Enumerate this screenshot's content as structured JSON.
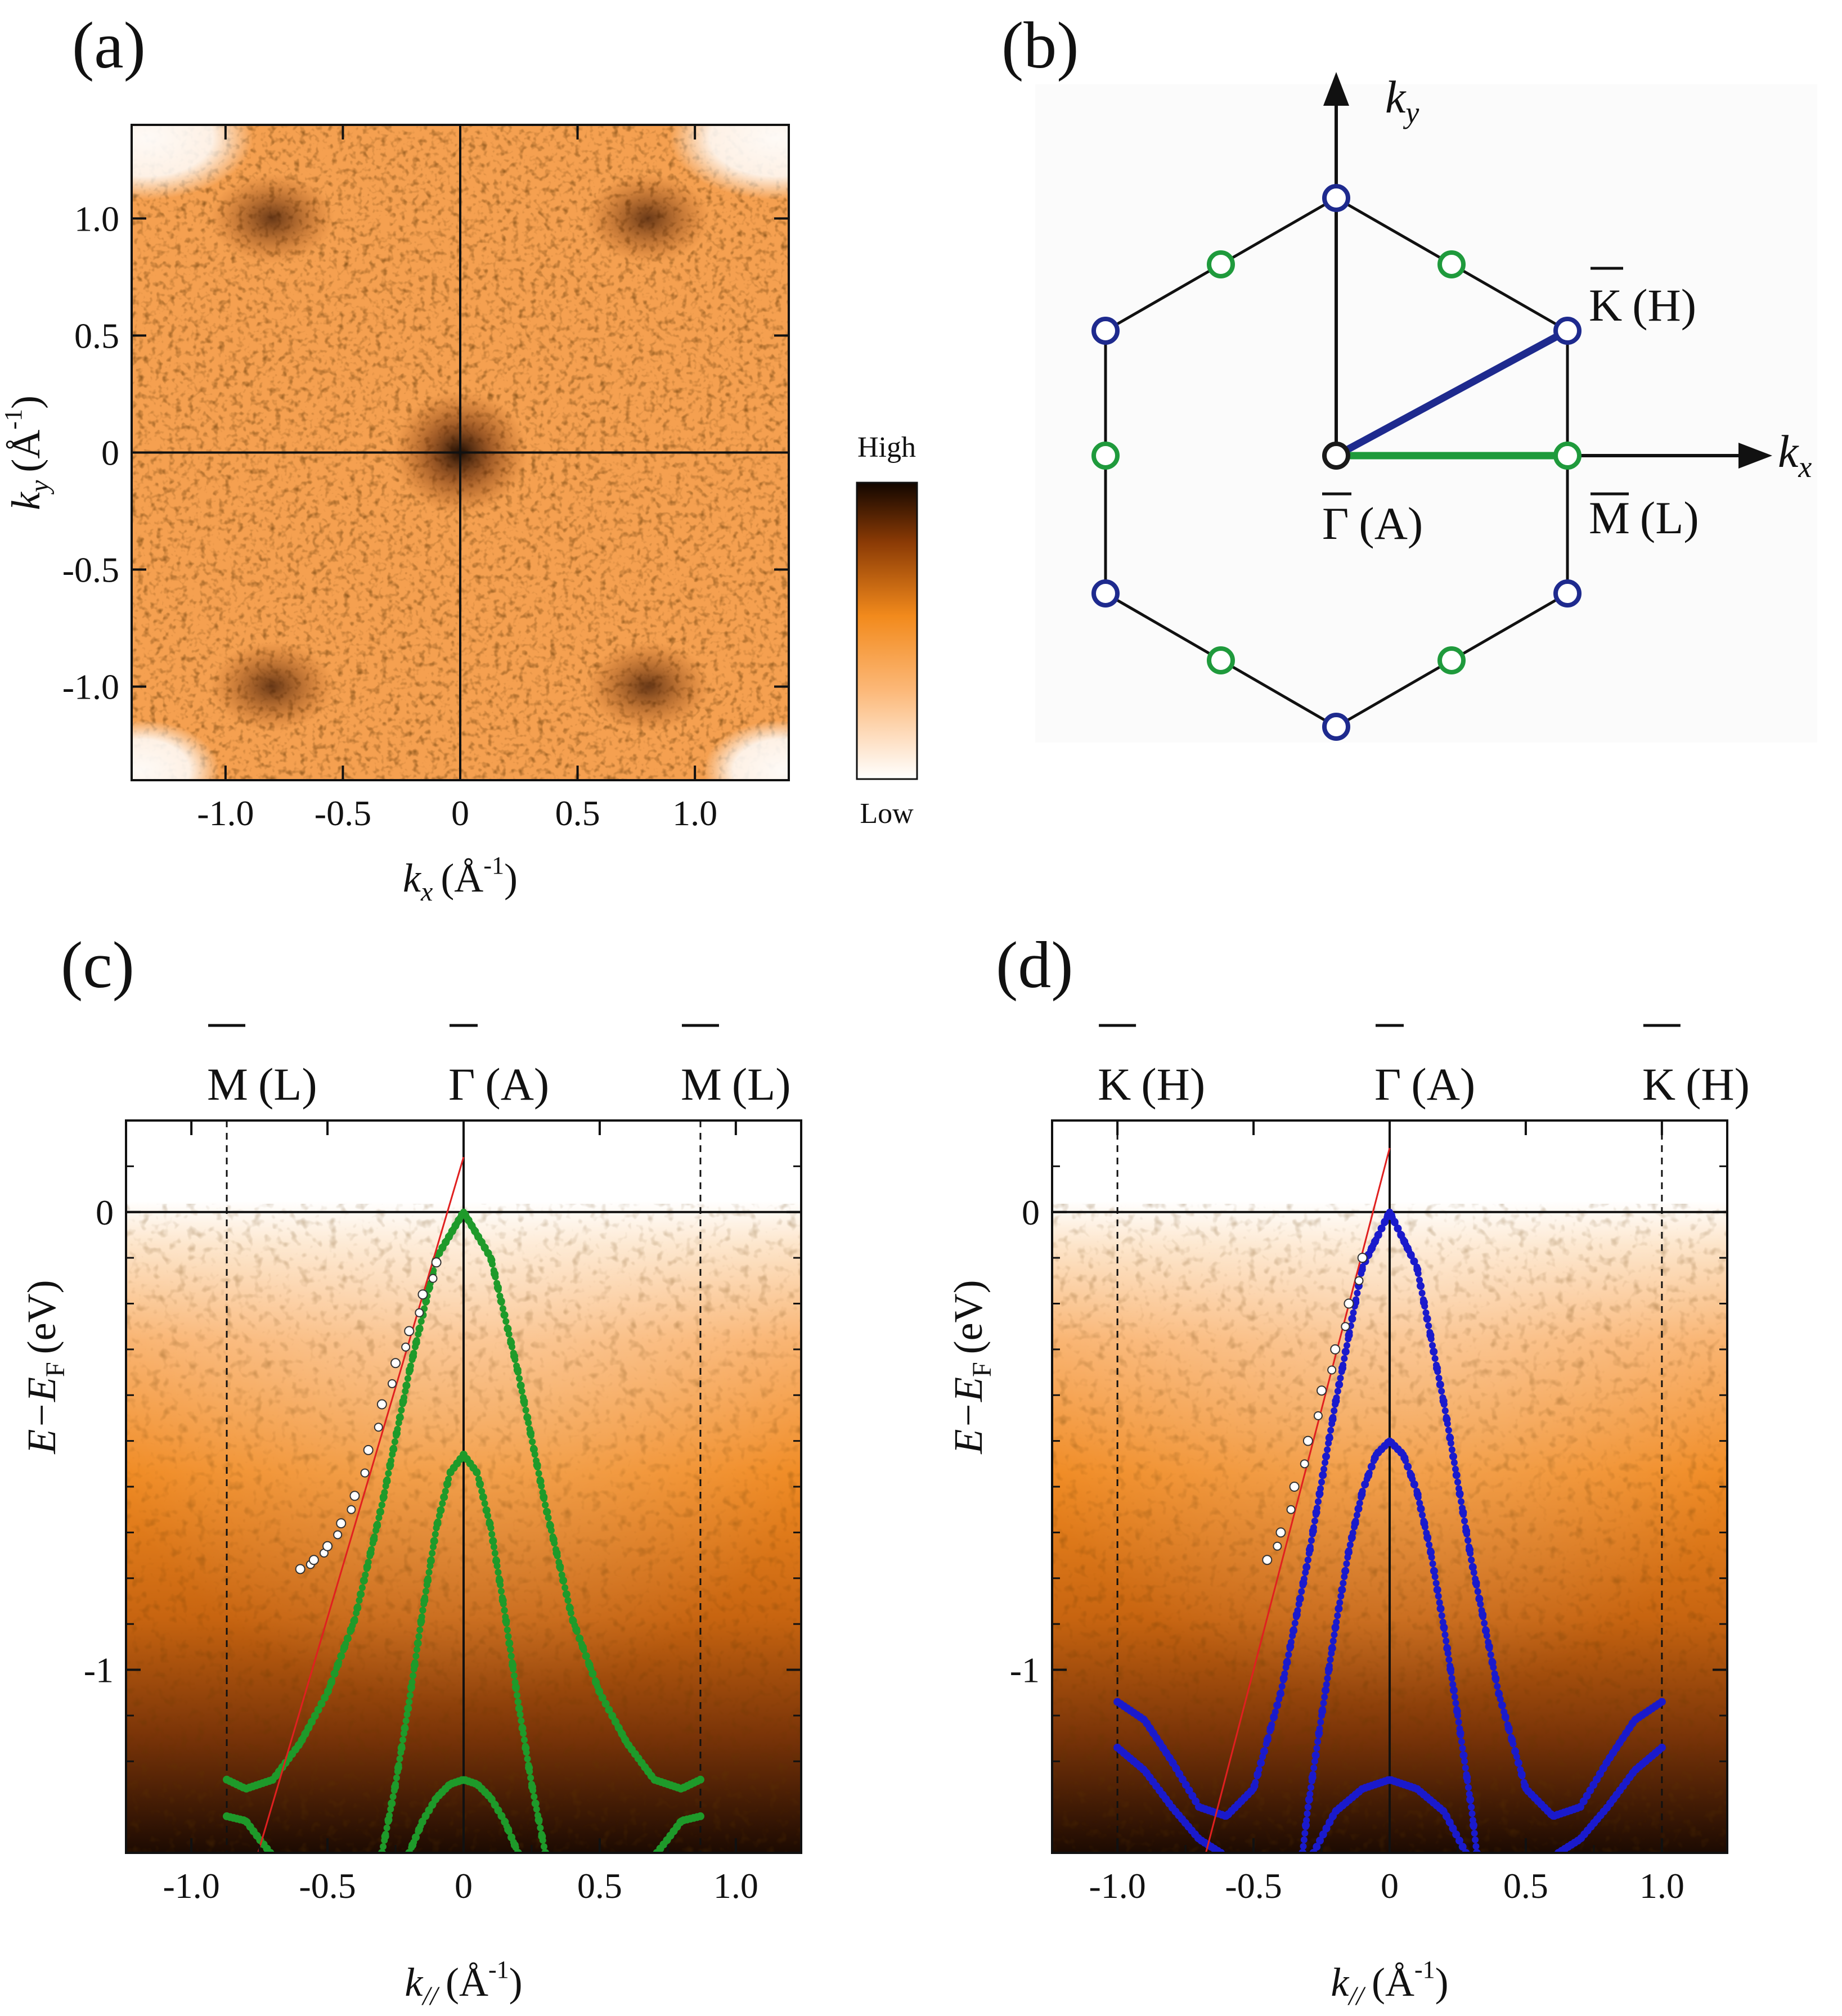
{
  "panel_labels": [
    "(a)",
    "(b)",
    "(c)",
    "(d)"
  ],
  "chart_data": [
    {
      "panel": "(a)",
      "type": "heatmap",
      "title": "",
      "xlabel": {
        "main": "k",
        "sub": "x",
        "unit": "(Å",
        "unit_exp": "-1",
        "unit_close": ")"
      },
      "ylabel": {
        "main": "k",
        "sub": "y",
        "unit": "(Å",
        "unit_exp": "-1",
        "unit_close": ")"
      },
      "xlim": [
        -1.4,
        1.4
      ],
      "ylim": [
        -1.4,
        1.4
      ],
      "xticks": [
        -1.0,
        -0.5,
        0,
        0.5,
        1.0
      ],
      "xtick_labels": [
        "-1.0",
        "-0.5",
        "0",
        "0.5",
        "1.0"
      ],
      "yticks": [
        1.0,
        0.5,
        0,
        -0.5,
        -1.0
      ],
      "ytick_labels": [
        "1.0",
        "0.5",
        "0",
        "-0.5",
        "-1.0"
      ],
      "colorbar": {
        "high_label": "High",
        "low_label": "Low",
        "colors": [
          "#ffffff",
          "#fcb878",
          "#f28a1c",
          "#8a3a05",
          "#120600"
        ]
      },
      "intensity_features": [
        {
          "kx": 0.0,
          "ky": 0.0,
          "note": "central dark spot"
        },
        {
          "kx": -0.8,
          "ky": 1.0
        },
        {
          "kx": 0.8,
          "ky": 1.0
        },
        {
          "kx": -0.8,
          "ky": -1.0
        },
        {
          "kx": 0.8,
          "ky": -1.0
        }
      ]
    },
    {
      "panel": "(b)",
      "type": "diagram",
      "axis_labels": {
        "kx": "k",
        "kx_sub": "x",
        "ky": "k",
        "ky_sub": "y"
      },
      "points": [
        {
          "label": "Γ",
          "suffix": "(A)",
          "role": "center"
        },
        {
          "label": "K",
          "suffix": "(H)",
          "role": "corner"
        },
        {
          "label": "M",
          "suffix": "(L)",
          "role": "edge-midpoint"
        }
      ],
      "colors": {
        "corner": "#1e2a8e",
        "edge": "#1f9a3c",
        "center": "#1a1a1a",
        "outline": "#111111"
      }
    },
    {
      "panel": "(c)",
      "type": "line",
      "direction": "Γ-M",
      "xlabel": {
        "main": "k",
        "sub": "//",
        "unit": "(Å",
        "unit_exp": "-1",
        "unit_close": ")"
      },
      "ylabel": {
        "main": "E−E",
        "sub": "F",
        "unit": "(eV)"
      },
      "xlim": [
        -1.24,
        1.24
      ],
      "ylim": [
        -1.4,
        0.2
      ],
      "xticks": [
        -1.0,
        -0.5,
        0,
        0.5,
        1.0
      ],
      "xtick_labels": [
        "-1.0",
        "-0.5",
        "0",
        "0.5",
        "1.0"
      ],
      "yticks": [
        0,
        -1
      ],
      "ytick_labels": [
        "0",
        "-1"
      ],
      "top_labels": [
        {
          "k": -0.87,
          "sym": "M",
          "suffix": "(L)"
        },
        {
          "k": 0,
          "sym": "Γ",
          "suffix": "(A)"
        },
        {
          "k": 0.87,
          "sym": "M",
          "suffix": "(L)"
        }
      ],
      "zone_boundary_k": 0.87,
      "band_color": "#1e9a2a",
      "series": [
        {
          "name": "band 1",
          "style": "dotted",
          "x": [
            -0.87,
            -0.8,
            -0.7,
            -0.6,
            -0.5,
            -0.4,
            -0.3,
            -0.2,
            -0.1,
            0,
            0.1,
            0.2,
            0.3,
            0.4,
            0.5,
            0.6,
            0.7,
            0.8,
            0.87
          ],
          "y": [
            -1.24,
            -1.26,
            -1.24,
            -1.16,
            -1.05,
            -0.89,
            -0.64,
            -0.35,
            -0.1,
            0,
            -0.1,
            -0.35,
            -0.64,
            -0.89,
            -1.05,
            -1.16,
            -1.24,
            -1.26,
            -1.24
          ]
        },
        {
          "name": "band 2",
          "style": "dotted",
          "x": [
            -0.3,
            -0.25,
            -0.2,
            -0.15,
            -0.1,
            -0.05,
            0,
            0.05,
            0.1,
            0.15,
            0.2,
            0.25,
            0.3
          ],
          "y": [
            -1.4,
            -1.25,
            -1.07,
            -0.87,
            -0.69,
            -0.57,
            -0.53,
            -0.57,
            -0.69,
            -0.87,
            -1.07,
            -1.25,
            -1.4
          ]
        },
        {
          "name": "band 3",
          "style": "dotted",
          "x": [
            -0.2,
            -0.15,
            -0.1,
            -0.05,
            0,
            0.05,
            0.1,
            0.15,
            0.2
          ],
          "y": [
            -1.4,
            -1.33,
            -1.28,
            -1.25,
            -1.24,
            -1.25,
            -1.28,
            -1.33,
            -1.4
          ]
        },
        {
          "name": "band 4",
          "style": "dotted",
          "x": [
            -0.87,
            -0.8,
            -0.75,
            -0.71
          ],
          "y": [
            -1.32,
            -1.33,
            -1.37,
            -1.4
          ]
        },
        {
          "name": "band 5",
          "style": "dotted",
          "x": [
            0.71,
            0.75,
            0.8,
            0.87
          ],
          "y": [
            -1.4,
            -1.37,
            -1.33,
            -1.32
          ]
        },
        {
          "name": "linear fit",
          "style": "line",
          "color": "#e02020",
          "x": [
            -0.755,
            0
          ],
          "y": [
            -1.4,
            0.12
          ]
        },
        {
          "name": "MDC peaks",
          "style": "markers",
          "x": [
            -0.6,
            -0.55,
            -0.5,
            -0.45,
            -0.4,
            -0.35,
            -0.3,
            -0.25,
            -0.2,
            -0.15,
            -0.1
          ],
          "y": [
            -0.78,
            -0.76,
            -0.73,
            -0.68,
            -0.62,
            -0.52,
            -0.42,
            -0.33,
            -0.26,
            -0.18,
            -0.11
          ]
        }
      ]
    },
    {
      "panel": "(d)",
      "type": "line",
      "direction": "Γ-K",
      "xlabel": {
        "main": "k",
        "sub": "//",
        "unit": "(Å",
        "unit_exp": "-1",
        "unit_close": ")"
      },
      "ylabel": {
        "main": "E−E",
        "sub": "F",
        "unit": "(eV)"
      },
      "xlim": [
        -1.24,
        1.24
      ],
      "ylim": [
        -1.4,
        0.2
      ],
      "xticks": [
        -1.0,
        -0.5,
        0,
        0.5,
        1.0
      ],
      "xtick_labels": [
        "-1.0",
        "-0.5",
        "0",
        "0.5",
        "1.0"
      ],
      "yticks": [
        0,
        -1
      ],
      "ytick_labels": [
        "0",
        "-1"
      ],
      "top_labels": [
        {
          "k": -1.0,
          "sym": "K",
          "suffix": "(H)"
        },
        {
          "k": 0,
          "sym": "Γ",
          "suffix": "(A)"
        },
        {
          "k": 1.0,
          "sym": "K",
          "suffix": "(H)"
        }
      ],
      "zone_boundary_k": 1.0,
      "band_color": "#1a1acc",
      "series": [
        {
          "name": "band 1",
          "style": "dotted",
          "x": [
            -1.0,
            -0.9,
            -0.8,
            -0.7,
            -0.6,
            -0.5,
            -0.4,
            -0.3,
            -0.2,
            -0.1,
            0,
            0.1,
            0.2,
            0.3,
            0.4,
            0.5,
            0.6,
            0.7,
            0.8,
            0.9,
            1.0
          ],
          "y": [
            -1.07,
            -1.11,
            -1.2,
            -1.3,
            -1.32,
            -1.26,
            -1.05,
            -0.76,
            -0.42,
            -0.12,
            0,
            -0.12,
            -0.42,
            -0.76,
            -1.05,
            -1.26,
            -1.32,
            -1.3,
            -1.2,
            -1.11,
            -1.07
          ]
        },
        {
          "name": "band 2",
          "style": "dotted",
          "x": [
            -0.32,
            -0.3,
            -0.25,
            -0.2,
            -0.15,
            -0.1,
            -0.05,
            0,
            0.05,
            0.1,
            0.15,
            0.2,
            0.25,
            0.3,
            0.32
          ],
          "y": [
            -1.4,
            -1.3,
            -1.1,
            -0.91,
            -0.74,
            -0.61,
            -0.53,
            -0.5,
            -0.53,
            -0.61,
            -0.74,
            -0.91,
            -1.1,
            -1.3,
            -1.4
          ]
        },
        {
          "name": "band 3",
          "style": "dotted",
          "x": [
            -0.28,
            -0.2,
            -0.1,
            0,
            0.1,
            0.2,
            0.28
          ],
          "y": [
            -1.4,
            -1.31,
            -1.26,
            -1.24,
            -1.26,
            -1.31,
            -1.4
          ]
        },
        {
          "name": "band 4",
          "style": "dotted",
          "x": [
            -1.0,
            -0.9,
            -0.8,
            -0.7,
            -0.62
          ],
          "y": [
            -1.17,
            -1.22,
            -1.3,
            -1.37,
            -1.4
          ]
        },
        {
          "name": "band 5",
          "style": "dotted",
          "x": [
            0.62,
            0.7,
            0.8,
            0.9,
            1.0
          ],
          "y": [
            -1.4,
            -1.37,
            -1.3,
            -1.22,
            -1.17
          ]
        },
        {
          "name": "linear fit",
          "style": "line",
          "color": "#e02020",
          "x": [
            -0.675,
            0
          ],
          "y": [
            -1.4,
            0.14
          ]
        },
        {
          "name": "MDC peaks",
          "style": "markers",
          "x": [
            -0.45,
            -0.4,
            -0.35,
            -0.3,
            -0.25,
            -0.2,
            -0.15,
            -0.1
          ],
          "y": [
            -0.76,
            -0.7,
            -0.6,
            -0.5,
            -0.39,
            -0.3,
            -0.2,
            -0.1
          ]
        }
      ]
    }
  ]
}
